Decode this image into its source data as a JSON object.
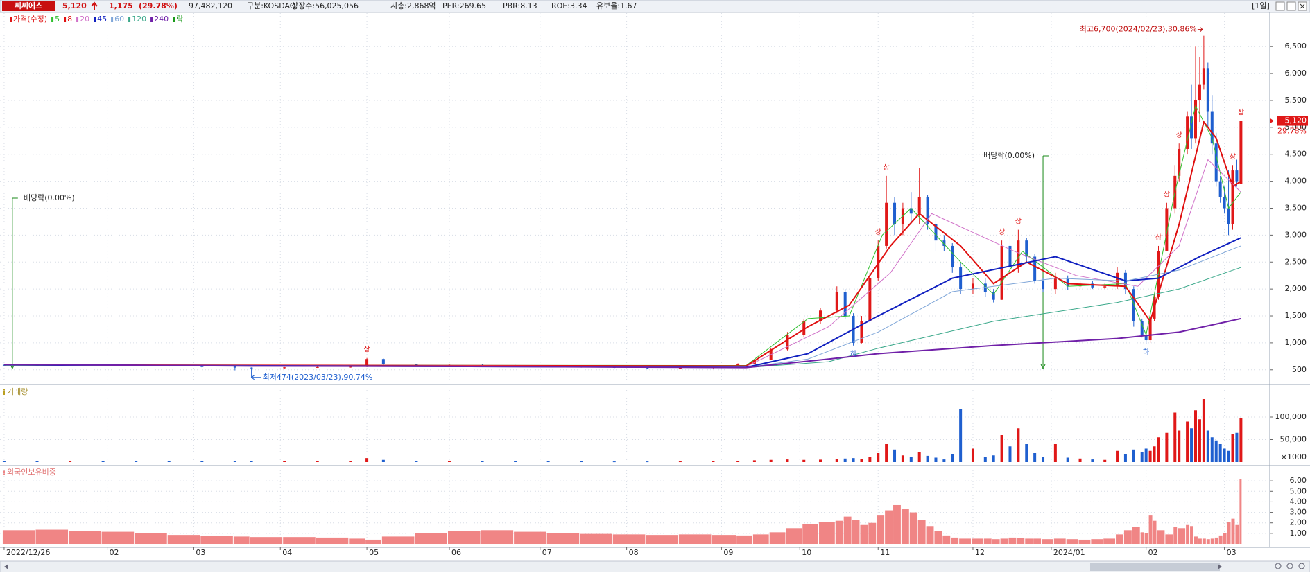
{
  "header": {
    "name": "씨씨에스",
    "price": "5,120",
    "change": "1,175",
    "change_pct": "(29.78%)",
    "items": [
      "97,482,120",
      "구분:KOSDAQ",
      "상장수:56,025,056",
      "시총:2,868억",
      "PER:269.65",
      "PBR:8.13",
      "ROE:3.34",
      "유보율:1.67"
    ],
    "period": "[1일]"
  },
  "chart_data": {
    "type": "candlestick",
    "price_series_name": "가격(수정)",
    "ex_dividend_legend": "락",
    "xlim": [
      -1,
      307
    ],
    "xticks": [
      {
        "value": 0,
        "label": "2022/12/26"
      },
      {
        "value": 25,
        "label": "02"
      },
      {
        "value": 46,
        "label": "03"
      },
      {
        "value": 67,
        "label": "04"
      },
      {
        "value": 88,
        "label": "05"
      },
      {
        "value": 108,
        "label": "06"
      },
      {
        "value": 130,
        "label": "07"
      },
      {
        "value": 151,
        "label": "08"
      },
      {
        "value": 174,
        "label": "09"
      },
      {
        "value": 193,
        "label": "10"
      },
      {
        "value": 212,
        "label": "11"
      },
      {
        "value": 235,
        "label": "12"
      },
      {
        "value": 254,
        "label": "2024/01"
      },
      {
        "value": 277,
        "label": "02"
      },
      {
        "value": 296,
        "label": "03"
      }
    ],
    "ylim": [
      240,
      7120
    ],
    "yticks": [
      500,
      {
        "value": 1000,
        "label": "1,000"
      },
      {
        "value": 1500,
        "label": "1,500"
      },
      {
        "value": 2000,
        "label": "2,000"
      },
      {
        "value": 2500,
        "label": "2,500"
      },
      {
        "value": 3000,
        "label": "3,000"
      },
      {
        "value": 3500,
        "label": "3,500"
      },
      {
        "value": 4000,
        "label": "4,000"
      },
      {
        "value": 4500,
        "label": "4,500"
      },
      {
        "value": 5000,
        "label": "5,000"
      },
      {
        "value": 5500,
        "label": "5,500"
      },
      {
        "value": 6000,
        "label": "6,000"
      },
      {
        "value": 6500,
        "label": "6,500"
      }
    ],
    "up_color": "#e01818",
    "down_color": "#1f5fcf",
    "candles": [
      [
        0,
        590,
        600,
        570,
        580,
        3000,
        1.3
      ],
      [
        8,
        580,
        590,
        565,
        575,
        2500,
        1.35
      ],
      [
        16,
        575,
        600,
        570,
        595,
        2600,
        1.25
      ],
      [
        24,
        595,
        610,
        580,
        590,
        2400,
        1.15
      ],
      [
        32,
        590,
        600,
        575,
        580,
        2200,
        1.0
      ],
      [
        40,
        580,
        585,
        560,
        565,
        2000,
        0.85
      ],
      [
        48,
        565,
        575,
        545,
        560,
        1800,
        0.75
      ],
      [
        56,
        560,
        565,
        490,
        540,
        2500,
        0.7
      ],
      [
        60,
        540,
        545,
        474,
        530,
        3000,
        0.65
      ],
      [
        68,
        530,
        550,
        520,
        545,
        1800,
        0.65
      ],
      [
        76,
        545,
        560,
        535,
        550,
        1700,
        0.6
      ],
      [
        84,
        550,
        560,
        540,
        555,
        1800,
        0.5
      ],
      [
        88,
        555,
        720,
        550,
        700,
        9000,
        0.4
      ],
      [
        92,
        700,
        710,
        580,
        600,
        5000,
        0.7
      ],
      [
        100,
        600,
        610,
        570,
        585,
        2000,
        1.0
      ],
      [
        108,
        585,
        600,
        570,
        590,
        1800,
        1.25
      ],
      [
        116,
        590,
        600,
        575,
        580,
        1700,
        1.3
      ],
      [
        124,
        580,
        590,
        565,
        570,
        1600,
        1.15
      ],
      [
        132,
        570,
        580,
        555,
        560,
        1500,
        1.0
      ],
      [
        140,
        560,
        570,
        540,
        550,
        1500,
        0.95
      ],
      [
        148,
        550,
        560,
        530,
        540,
        1400,
        0.9
      ],
      [
        156,
        540,
        550,
        520,
        530,
        1400,
        0.85
      ],
      [
        164,
        530,
        545,
        520,
        535,
        1500,
        0.9
      ],
      [
        172,
        535,
        560,
        525,
        555,
        2000,
        0.85
      ],
      [
        178,
        555,
        620,
        550,
        610,
        3000,
        0.8
      ],
      [
        182,
        610,
        700,
        600,
        690,
        4000,
        0.9
      ],
      [
        186,
        690,
        900,
        680,
        880,
        5000,
        1.1
      ],
      [
        190,
        880,
        1200,
        860,
        1150,
        6000,
        1.5
      ],
      [
        194,
        1150,
        1450,
        1100,
        1400,
        5000,
        1.9
      ],
      [
        198,
        1400,
        1650,
        1350,
        1600,
        5500,
        2.1
      ],
      [
        202,
        1600,
        2050,
        1550,
        1950,
        6500,
        2.2
      ],
      [
        204,
        1950,
        2000,
        1450,
        1500,
        8000,
        2.6
      ],
      [
        206,
        1500,
        1550,
        950,
        1000,
        9000,
        2.3
      ],
      [
        208,
        1000,
        1500,
        990,
        1400,
        7000,
        1.8
      ],
      [
        210,
        1400,
        2300,
        1380,
        2200,
        12000,
        2.0
      ],
      [
        212,
        2200,
        2900,
        2150,
        2800,
        20000,
        2.7
      ],
      [
        214,
        2800,
        4100,
        2750,
        3600,
        40000,
        3.2
      ],
      [
        216,
        3600,
        3700,
        3000,
        3200,
        28000,
        3.7
      ],
      [
        218,
        3200,
        3600,
        3000,
        3500,
        15000,
        3.3
      ],
      [
        220,
        3500,
        3800,
        3200,
        3400,
        12000,
        3.0
      ],
      [
        222,
        3400,
        4250,
        3200,
        3700,
        22000,
        2.3
      ],
      [
        224,
        3700,
        3750,
        3100,
        3200,
        14000,
        1.7
      ],
      [
        226,
        3200,
        3300,
        2700,
        2900,
        10000,
        1.2
      ],
      [
        228,
        2900,
        3000,
        2700,
        2800,
        6000,
        0.8
      ],
      [
        230,
        2800,
        2850,
        2300,
        2400,
        18000,
        0.6
      ],
      [
        232,
        2400,
        2500,
        1900,
        2000,
        117000,
        0.5
      ],
      [
        235,
        2000,
        2200,
        1900,
        2100,
        30000,
        0.5
      ],
      [
        238,
        2100,
        2200,
        1850,
        1950,
        12000,
        0.5
      ],
      [
        240,
        1950,
        2000,
        1750,
        1800,
        15000,
        0.45
      ],
      [
        242,
        1800,
        2900,
        1800,
        2800,
        60000,
        0.5
      ],
      [
        244,
        2800,
        3000,
        2200,
        2400,
        35000,
        0.6
      ],
      [
        246,
        2400,
        3100,
        2300,
        2900,
        75000,
        0.55
      ],
      [
        248,
        2900,
        2950,
        2500,
        2600,
        40000,
        0.5
      ],
      [
        250,
        2600,
        2650,
        2100,
        2150,
        20000,
        0.5
      ],
      [
        252,
        2150,
        2200,
        1950,
        2000,
        12000,
        0.45
      ],
      [
        255,
        2000,
        2300,
        1900,
        2200,
        40000,
        0.5
      ],
      [
        258,
        2200,
        2250,
        1980,
        2050,
        10000,
        0.45
      ],
      [
        261,
        2050,
        2150,
        2000,
        2100,
        8000,
        0.4
      ],
      [
        264,
        2100,
        2150,
        2000,
        2030,
        6000,
        0.45
      ],
      [
        267,
        2030,
        2100,
        2000,
        2050,
        5000,
        0.5
      ],
      [
        270,
        2050,
        2400,
        2000,
        2300,
        25000,
        0.9
      ],
      [
        272,
        2300,
        2350,
        1900,
        2000,
        18000,
        1.3
      ],
      [
        274,
        2000,
        2050,
        1300,
        1400,
        28000,
        1.6
      ],
      [
        276,
        1400,
        1450,
        1100,
        1150,
        22000,
        1.1
      ],
      [
        277,
        1150,
        1200,
        980,
        1050,
        30000,
        1.0
      ],
      [
        278,
        1050,
        1500,
        1000,
        1450,
        25000,
        2.7
      ],
      [
        279,
        1450,
        1900,
        1400,
        1850,
        35000,
        2.2
      ],
      [
        280,
        1850,
        2800,
        1800,
        2700,
        55000,
        1.3
      ],
      [
        282,
        2700,
        3600,
        2700,
        3500,
        65000,
        0.9
      ],
      [
        284,
        3500,
        4300,
        3400,
        4100,
        110000,
        1.6
      ],
      [
        285,
        4100,
        4700,
        4000,
        4600,
        70000,
        1.5
      ],
      [
        287,
        4600,
        5300,
        4500,
        5200,
        90000,
        1.8
      ],
      [
        288,
        5200,
        5800,
        4600,
        4800,
        75000,
        1.7
      ],
      [
        289,
        4800,
        6500,
        4700,
        5500,
        115000,
        0.7
      ],
      [
        290,
        5500,
        6300,
        5100,
        5800,
        95000,
        0.5
      ],
      [
        291,
        5800,
        6700,
        5700,
        6100,
        140000,
        0.5
      ],
      [
        292,
        6100,
        6200,
        5000,
        5300,
        70000,
        0.45
      ],
      [
        293,
        5300,
        5600,
        4500,
        4700,
        55000,
        0.5
      ],
      [
        294,
        4700,
        4900,
        3900,
        4000,
        48000,
        0.6
      ],
      [
        295,
        4000,
        4100,
        3600,
        3700,
        40000,
        0.8
      ],
      [
        296,
        3700,
        3900,
        3400,
        3500,
        30000,
        1.0
      ],
      [
        297,
        3500,
        4200,
        3000,
        3200,
        25000,
        2.1
      ],
      [
        298,
        3200,
        4300,
        3100,
        4200,
        62000,
        2.4
      ],
      [
        299,
        4200,
        4400,
        3900,
        4000,
        65000,
        1.8
      ],
      [
        300,
        3950,
        5120,
        3950,
        5120,
        97482,
        6.2
      ]
    ],
    "series": [
      {
        "name": "5",
        "color": "#2fc02f",
        "width": 1,
        "x": [
          0,
          180,
          195,
          205,
          213,
          220,
          232,
          240,
          247,
          258,
          272,
          277,
          284,
          289,
          293,
          297,
          300
        ],
        "values": [
          590,
          580,
          1450,
          1500,
          3000,
          3500,
          2500,
          1900,
          2700,
          2050,
          2100,
          1150,
          3800,
          5400,
          4800,
          3500,
          3800
        ]
      },
      {
        "name": "8",
        "color": "#e01010",
        "width": 2,
        "x": [
          0,
          180,
          195,
          205,
          215,
          222,
          232,
          240,
          248,
          258,
          272,
          278,
          285,
          291,
          294,
          298,
          300
        ],
        "values": [
          590,
          570,
          1300,
          1700,
          2800,
          3400,
          2800,
          2100,
          2500,
          2100,
          2050,
          1400,
          3200,
          5100,
          4800,
          3900,
          4000
        ]
      },
      {
        "name": "20",
        "color": "#d070c8",
        "width": 1,
        "x": [
          0,
          180,
          200,
          215,
          225,
          245,
          260,
          275,
          285,
          292,
          300
        ],
        "values": [
          590,
          560,
          1300,
          2300,
          3400,
          2700,
          2250,
          2050,
          2800,
          4400,
          3800
        ]
      },
      {
        "name": "45",
        "color": "#1020c0",
        "width": 2,
        "x": [
          0,
          180,
          195,
          212,
          230,
          255,
          272,
          280,
          290,
          300
        ],
        "values": [
          590,
          545,
          800,
          1500,
          2200,
          2600,
          2150,
          2200,
          2600,
          2950
        ]
      },
      {
        "name": "60",
        "color": "#7fa6d8",
        "width": 1,
        "x": [
          0,
          180,
          195,
          212,
          230,
          255,
          272,
          285,
          300
        ],
        "values": [
          590,
          545,
          700,
          1200,
          1950,
          2200,
          2150,
          2350,
          2800
        ]
      },
      {
        "name": "120",
        "color": "#3aa88a",
        "width": 1,
        "x": [
          0,
          120,
          180,
          200,
          212,
          240,
          270,
          285,
          300
        ],
        "values": [
          590,
          560,
          540,
          650,
          900,
          1400,
          1750,
          2000,
          2400
        ]
      },
      {
        "name": "240",
        "color": "#7020a8",
        "width": 2,
        "x": [
          0,
          60,
          120,
          180,
          200,
          212,
          240,
          270,
          285,
          300
        ],
        "values": [
          600,
          570,
          560,
          540,
          700,
          800,
          950,
          1080,
          1200,
          1450
        ]
      }
    ],
    "high_note": {
      "x": 291,
      "value": 6700,
      "label": "최고6,700(2024/02/23),30.86%"
    },
    "low_note": {
      "x": 60,
      "value": 474,
      "label": "최저474(2023/03/23),90.74%"
    },
    "dividend_marks": [
      {
        "x": 2,
        "label": "배당락(0.00%)"
      },
      {
        "x": 252,
        "label": "배당락(0.00%)"
      }
    ],
    "limit_marks": [
      {
        "x": 88,
        "label": "상"
      },
      {
        "x": 212,
        "label": "상"
      },
      {
        "x": 214,
        "label": "상"
      },
      {
        "x": 242,
        "label": "상"
      },
      {
        "x": 246,
        "label": "상"
      },
      {
        "x": 206,
        "label": "하"
      },
      {
        "x": 277,
        "label": "하"
      },
      {
        "x": 280,
        "label": "상"
      },
      {
        "x": 282,
        "label": "상"
      },
      {
        "x": 285,
        "label": "상"
      },
      {
        "x": 298,
        "label": "상"
      },
      {
        "x": 300,
        "label": "상"
      }
    ],
    "current_price": {
      "value": 5120,
      "label": "5,120"
    },
    "current_change": "29.78%",
    "volume_title": "거래량",
    "volume_ylim": [
      0,
      160000
    ],
    "volume_yticks": [
      {
        "value": 50000,
        "label": "50,000"
      },
      {
        "value": 100000,
        "label": "100,000"
      }
    ],
    "volume_unit": "×1000",
    "foreign_title": "외국인보유비중",
    "foreign_color": "#f08585",
    "foreign_ylim": [
      0,
      7
    ],
    "foreign_yticks": [
      {
        "value": 1,
        "label": "1.00"
      },
      {
        "value": 2,
        "label": "2.00"
      },
      {
        "value": 3,
        "label": "3.00"
      },
      {
        "value": 4,
        "label": "4.00"
      },
      {
        "value": 5,
        "label": "5.00"
      },
      {
        "value": 6,
        "label": "6.00"
      }
    ]
  }
}
